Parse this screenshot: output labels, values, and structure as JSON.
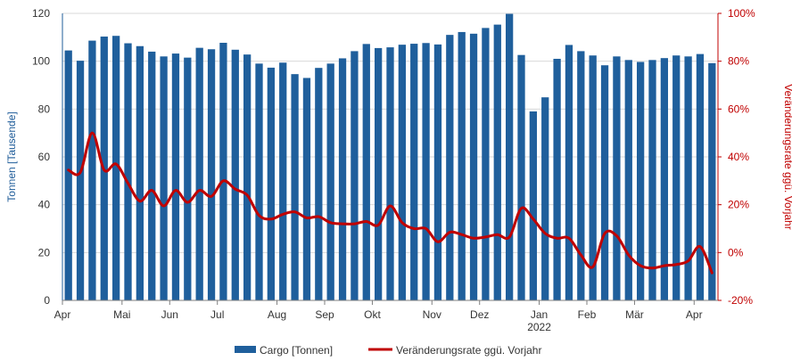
{
  "chart_data": {
    "type": "bar+line",
    "title": "",
    "colors": {
      "bars": "#1f5f9c",
      "line": "#c00000",
      "grid": "#d9d9d9",
      "left_axis": "#1f5c99",
      "right_axis": "#c00000"
    },
    "y_left": {
      "label": "Tonnen [Tausende]",
      "ylim": [
        0,
        120
      ],
      "ticks": [
        "0",
        "20",
        "40",
        "60",
        "80",
        "100",
        "120"
      ]
    },
    "y_right": {
      "label": "Veränderungsrate ggü. Vorjahr",
      "ylim": [
        -20,
        100
      ],
      "ticks": [
        "-20%",
        "0%",
        "20%",
        "40%",
        "60%",
        "80%",
        "100%"
      ]
    },
    "x_ticks": [
      {
        "label": "Apr",
        "week": 0
      },
      {
        "label": "Mai",
        "week": 5
      },
      {
        "label": "Jun",
        "week": 9
      },
      {
        "label": "Jul",
        "week": 13
      },
      {
        "label": "Aug",
        "week": 18
      },
      {
        "label": "Sep",
        "week": 22
      },
      {
        "label": "Okt",
        "week": 26
      },
      {
        "label": "Nov",
        "week": 31
      },
      {
        "label": "Dez",
        "week": 35
      },
      {
        "label": "Jan",
        "week": 40
      },
      {
        "label": "Feb",
        "week": 44
      },
      {
        "label": "Mär",
        "week": 48
      },
      {
        "label": "Apr",
        "week": 53
      }
    ],
    "year_label": {
      "label": "2022",
      "week": 40
    },
    "series": [
      {
        "name": "Cargo [Tonnen]",
        "type": "bar",
        "axis": "left",
        "values": [
          104.5,
          100.2,
          108.6,
          110.3,
          110.6,
          107.5,
          106.3,
          104.0,
          102.0,
          103.2,
          101.5,
          105.6,
          105.0,
          107.7,
          104.8,
          102.8,
          99.0,
          97.3,
          99.4,
          94.6,
          93.0,
          97.2,
          99.0,
          101.2,
          104.2,
          107.2,
          105.5,
          105.8,
          106.9,
          107.3,
          107.6,
          107.0,
          111.0,
          112.2,
          111.5,
          113.9,
          115.3,
          119.8,
          102.6,
          79.0,
          84.9,
          101.0,
          106.8,
          104.2,
          102.4,
          98.3,
          102.0,
          100.5,
          99.7,
          100.5,
          101.3,
          102.4,
          102.0,
          103.0,
          99.2
        ]
      },
      {
        "name": "Veränderungsrate ggü. Vorjahr",
        "type": "line",
        "axis": "right",
        "values": [
          34.5,
          33.5,
          50.0,
          34.5,
          37.0,
          29.0,
          21.5,
          26.0,
          19.5,
          26.0,
          21.0,
          26.0,
          23.5,
          30.0,
          26.5,
          24.0,
          15.5,
          14.0,
          16.0,
          17.0,
          14.5,
          15.0,
          12.5,
          12.0,
          12.0,
          13.0,
          11.5,
          19.5,
          12.5,
          10.0,
          10.0,
          4.5,
          8.5,
          7.5,
          6.0,
          6.5,
          7.5,
          6.5,
          18.5,
          14.0,
          8.0,
          6.0,
          6.0,
          -1.0,
          -6.0,
          8.0,
          7.0,
          -1.0,
          -5.5,
          -6.5,
          -5.5,
          -5.0,
          -3.5,
          2.5,
          -8.5
        ]
      }
    ]
  }
}
